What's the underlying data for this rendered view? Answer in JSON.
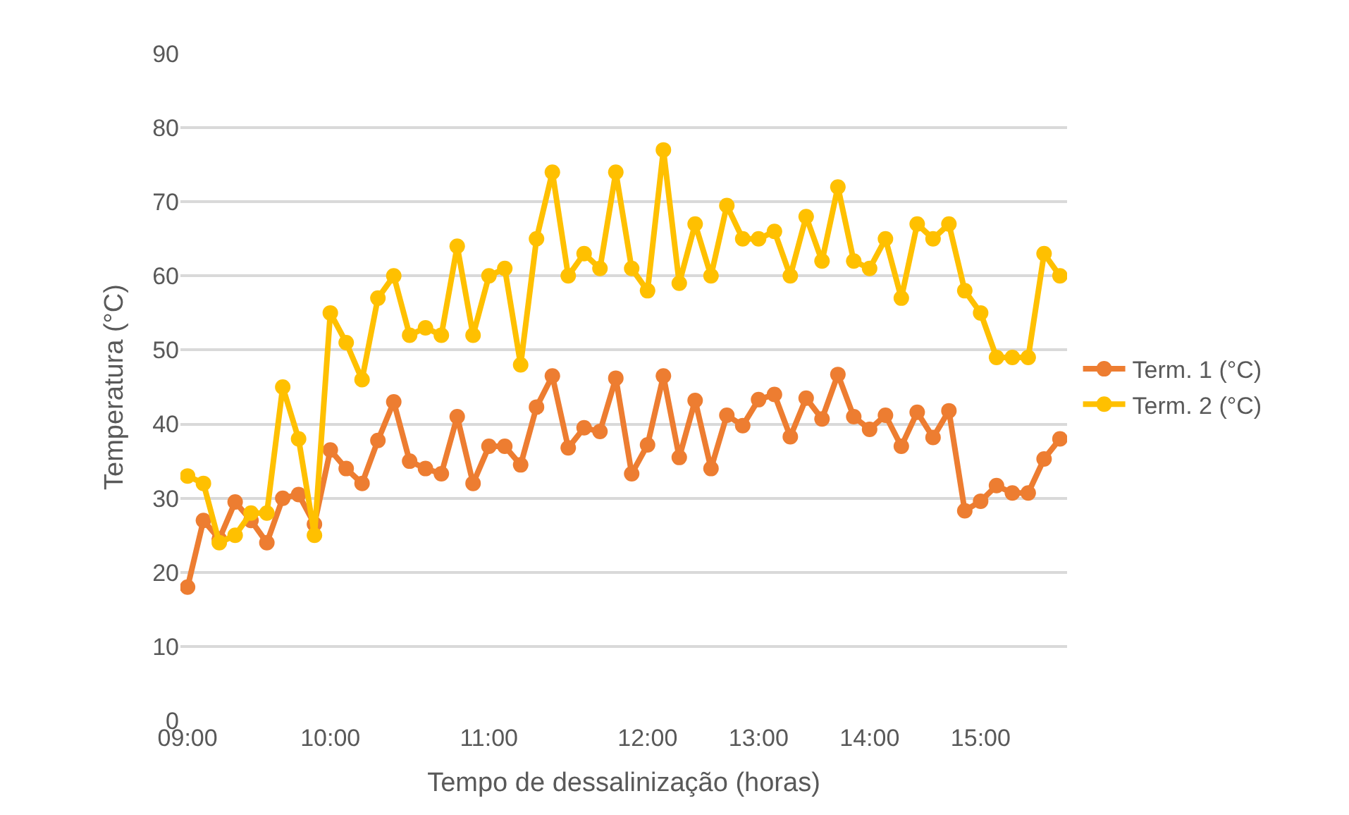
{
  "chart_data": {
    "type": "line",
    "xlabel": "Tempo de dessalinização (horas)",
    "ylabel": "Temperatura (°C)",
    "categories": [
      "09:00",
      null,
      null,
      null,
      null,
      null,
      null,
      null,
      null,
      "10:00",
      null,
      null,
      null,
      null,
      null,
      null,
      null,
      null,
      null,
      "11:00",
      null,
      null,
      null,
      null,
      null,
      null,
      null,
      null,
      null,
      "12:00",
      null,
      null,
      null,
      null,
      null,
      null,
      "13:00",
      null,
      null,
      null,
      null,
      null,
      null,
      "14:00",
      null,
      null,
      null,
      null,
      null,
      null,
      "15:00",
      null,
      null,
      null,
      null,
      null
    ],
    "series": [
      {
        "name": "Term. 1 (°C)",
        "color": "#ed7d31",
        "values": [
          18,
          27,
          24.5,
          29.5,
          27,
          24,
          30,
          30.5,
          26.5,
          36.5,
          34,
          32,
          37.8,
          43,
          35,
          34,
          33.3,
          41,
          32,
          37,
          37,
          34.5,
          42.3,
          46.5,
          36.8,
          39.5,
          39,
          46.2,
          33.3,
          37.2,
          46.5,
          35.5,
          43.2,
          34,
          41.2,
          39.8,
          43.3,
          44,
          38.3,
          43.5,
          40.7,
          46.7,
          41,
          39.3,
          41.2,
          37,
          41.6,
          38.2,
          41.8,
          28.3,
          29.6,
          31.7,
          30.7,
          30.7,
          35.3,
          38
        ]
      },
      {
        "name": "Term. 2 (°C)",
        "color": "#ffc000",
        "values": [
          33,
          32,
          24,
          25,
          28,
          28,
          45,
          38,
          25,
          55,
          51,
          46,
          57,
          60,
          52,
          53,
          52,
          64,
          52,
          60,
          61,
          48,
          65,
          74,
          60,
          63,
          61,
          74,
          61,
          58,
          77,
          59,
          67,
          60,
          69.5,
          65,
          65,
          66,
          60,
          68,
          62,
          72,
          62,
          61,
          65,
          57,
          67,
          65,
          67,
          58,
          55,
          49,
          49,
          49,
          63,
          60
        ]
      }
    ],
    "ylim": [
      0,
      90
    ],
    "yticks": [
      0,
      10,
      20,
      30,
      40,
      50,
      60,
      70,
      80,
      90
    ],
    "grid": "y",
    "legend": "right",
    "marker": "circle",
    "line_style": "solid"
  }
}
